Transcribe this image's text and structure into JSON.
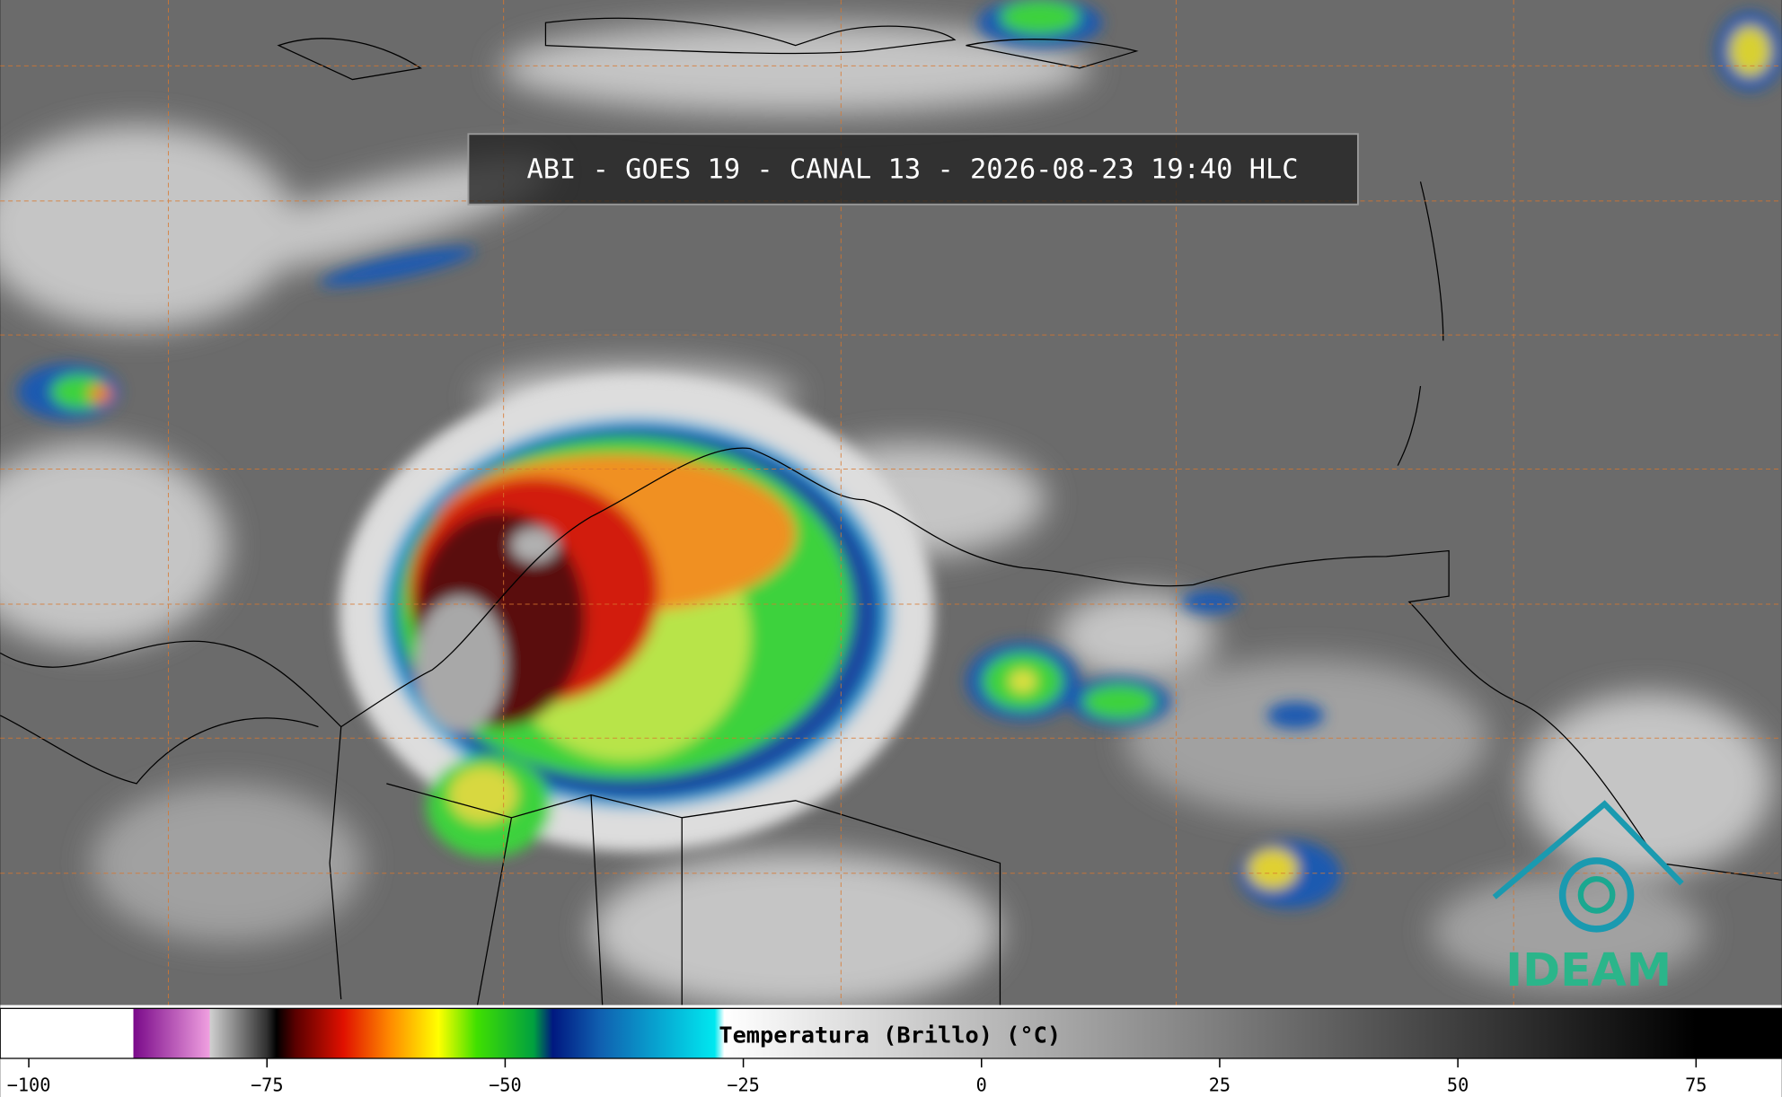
{
  "header": {
    "title": "ABI - GOES 19 - CANAL 13 - 2026-08-23 19:40 HLC"
  },
  "logo": {
    "text": "IDEAM"
  },
  "colorbar": {
    "label": "Temperatura (Brillo) (°C)",
    "lim": [
      -103,
      84
    ],
    "ticks": [
      {
        "value": -100,
        "label": "−100"
      },
      {
        "value": -75,
        "label": "−75"
      },
      {
        "value": -50,
        "label": "−50"
      },
      {
        "value": -25,
        "label": "−25"
      },
      0,
      25,
      50,
      75
    ],
    "stops": [
      [
        -103,
        "#ffffff"
      ],
      [
        -89,
        "#ffffff"
      ],
      [
        -89,
        "#7a0a8a"
      ],
      [
        -81,
        "#f0a0e0"
      ],
      [
        -81,
        "#d0d0d0"
      ],
      [
        -75,
        "#303030"
      ],
      [
        -74,
        "#000000"
      ],
      [
        -72,
        "#5a0000"
      ],
      [
        -67,
        "#e01000"
      ],
      [
        -62,
        "#ff8c00"
      ],
      [
        -57,
        "#ffff00"
      ],
      [
        -53,
        "#40e000"
      ],
      [
        -47,
        "#00a040"
      ],
      [
        -45,
        "#001880"
      ],
      [
        -40,
        "#1060b0"
      ],
      [
        -28,
        "#00e8f0"
      ],
      [
        -27,
        "#ffffff"
      ],
      [
        75,
        "#000000"
      ],
      [
        84,
        "#000000"
      ]
    ]
  }
}
